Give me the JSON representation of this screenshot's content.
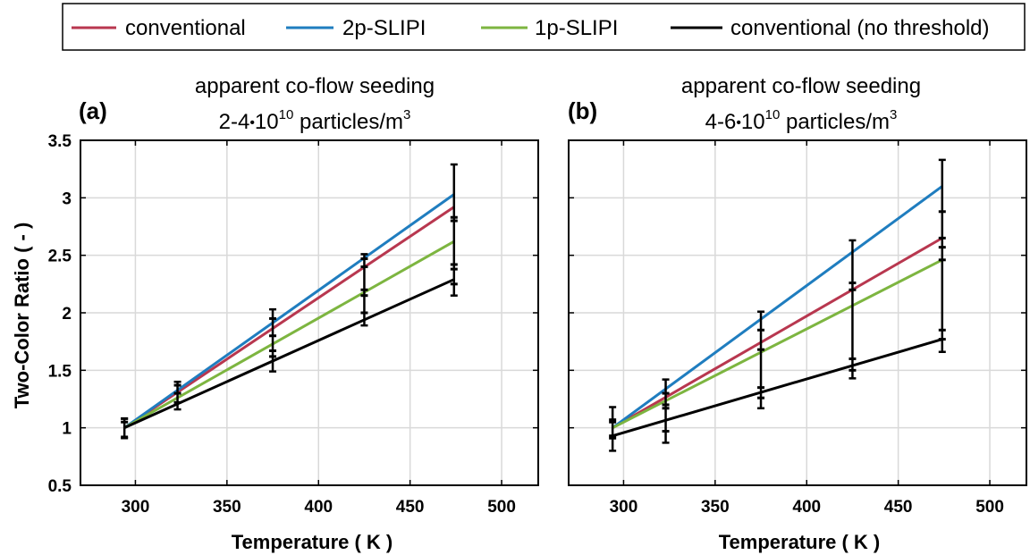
{
  "colors": {
    "conventional": "#b8374f",
    "2p-SLIPI": "#1f7dbf",
    "1p-SLIPI": "#7db540",
    "conventional (no threshold)": "#000000",
    "grid": "#d9d9d9"
  },
  "legend": {
    "placement": "top",
    "entries": [
      "conventional",
      "2p-SLIPI",
      "1p-SLIPI",
      "conventional (no threshold)"
    ]
  },
  "shared_axes": {
    "ylabel": "Two-Color Ratio ( - )",
    "xlabel": "Temperature ( K )"
  },
  "chart_data": [
    {
      "type": "line",
      "panel_label": "(a)",
      "title_line1": "apparent co-flow seeding",
      "title_line2": {
        "pre": "2-4",
        "dot": "•",
        "base": "10",
        "exp": "10",
        "mid": " particles/m",
        "unit_exp": "3"
      },
      "xlabel": "Temperature ( K )",
      "ylabel": "Two-Color Ratio ( - )",
      "xlim": [
        270,
        520
      ],
      "ylim": [
        0.5,
        3.5
      ],
      "xticks": [
        300,
        350,
        400,
        450,
        500
      ],
      "yticks": [
        0.5,
        1,
        1.5,
        2,
        2.5,
        3,
        3.5
      ],
      "ytick_labels": [
        "0.5",
        "1",
        "1.5",
        "2",
        "2.5",
        "3",
        "3.5"
      ],
      "grid": true,
      "series": [
        {
          "name": "conventional",
          "x": [
            294,
            474
          ],
          "y": [
            1.0,
            2.92
          ]
        },
        {
          "name": "2p-SLIPI",
          "x": [
            294,
            474
          ],
          "y": [
            1.0,
            3.03
          ]
        },
        {
          "name": "1p-SLIPI",
          "x": [
            294,
            474
          ],
          "y": [
            1.0,
            2.62
          ]
        },
        {
          "name": "conventional (no threshold)",
          "x": [
            294,
            474
          ],
          "y": [
            1.0,
            2.29
          ]
        }
      ],
      "error_bars": [
        {
          "x": 294,
          "y": 1.0,
          "low": 0.91,
          "high": 1.08,
          "marks": [
            1.08,
            1.05,
            0.92
          ]
        },
        {
          "x": 323,
          "y": 1.27,
          "low": 1.16,
          "high": 1.4,
          "marks": [
            1.37,
            1.3,
            1.22
          ]
        },
        {
          "x": 375,
          "y": 1.78,
          "low": 1.49,
          "high": 2.03,
          "marks": [
            1.95,
            1.8,
            1.67,
            1.62
          ]
        },
        {
          "x": 425,
          "y": 2.3,
          "low": 1.89,
          "high": 2.51,
          "marks": [
            2.47,
            2.4,
            2.2,
            2.15,
            2.0
          ]
        },
        {
          "x": 474,
          "y": 2.8,
          "low": 2.15,
          "high": 3.29,
          "marks": [
            2.83,
            2.8,
            2.42,
            2.38,
            2.25
          ]
        }
      ]
    },
    {
      "type": "line",
      "panel_label": "(b)",
      "title_line1": "apparent co-flow seeding",
      "title_line2": {
        "pre": "4-6",
        "dot": "•",
        "base": "10",
        "exp": "10",
        "mid": " particles/m",
        "unit_exp": "3"
      },
      "xlabel": "Temperature ( K )",
      "xlim": [
        270,
        520
      ],
      "ylim": [
        0.5,
        3.5
      ],
      "xticks": [
        300,
        350,
        400,
        450,
        500
      ],
      "grid": true,
      "series": [
        {
          "name": "conventional",
          "x": [
            294,
            474
          ],
          "y": [
            1.0,
            2.65
          ]
        },
        {
          "name": "2p-SLIPI",
          "x": [
            294,
            474
          ],
          "y": [
            1.0,
            3.1
          ]
        },
        {
          "name": "1p-SLIPI",
          "x": [
            294,
            474
          ],
          "y": [
            1.0,
            2.46
          ]
        },
        {
          "name": "conventional (no threshold)",
          "x": [
            294,
            474
          ],
          "y": [
            0.93,
            1.77
          ]
        }
      ],
      "error_bars": [
        {
          "x": 294,
          "y": 1.0,
          "low": 0.8,
          "high": 1.18,
          "marks": [
            1.07,
            1.05,
            0.93,
            0.91
          ]
        },
        {
          "x": 323,
          "y": 1.2,
          "low": 0.87,
          "high": 1.42,
          "marks": [
            1.3,
            1.2,
            1.17,
            0.97
          ]
        },
        {
          "x": 375,
          "y": 1.7,
          "low": 1.17,
          "high": 2.01,
          "marks": [
            1.85,
            1.68,
            1.35,
            1.26
          ]
        },
        {
          "x": 425,
          "y": 2.2,
          "low": 1.43,
          "high": 2.63,
          "marks": [
            2.26,
            2.2,
            1.6,
            1.5
          ]
        },
        {
          "x": 474,
          "y": 2.5,
          "low": 1.66,
          "high": 3.33,
          "marks": [
            2.88,
            2.65,
            2.57,
            2.46,
            1.85,
            1.77
          ]
        }
      ]
    }
  ]
}
